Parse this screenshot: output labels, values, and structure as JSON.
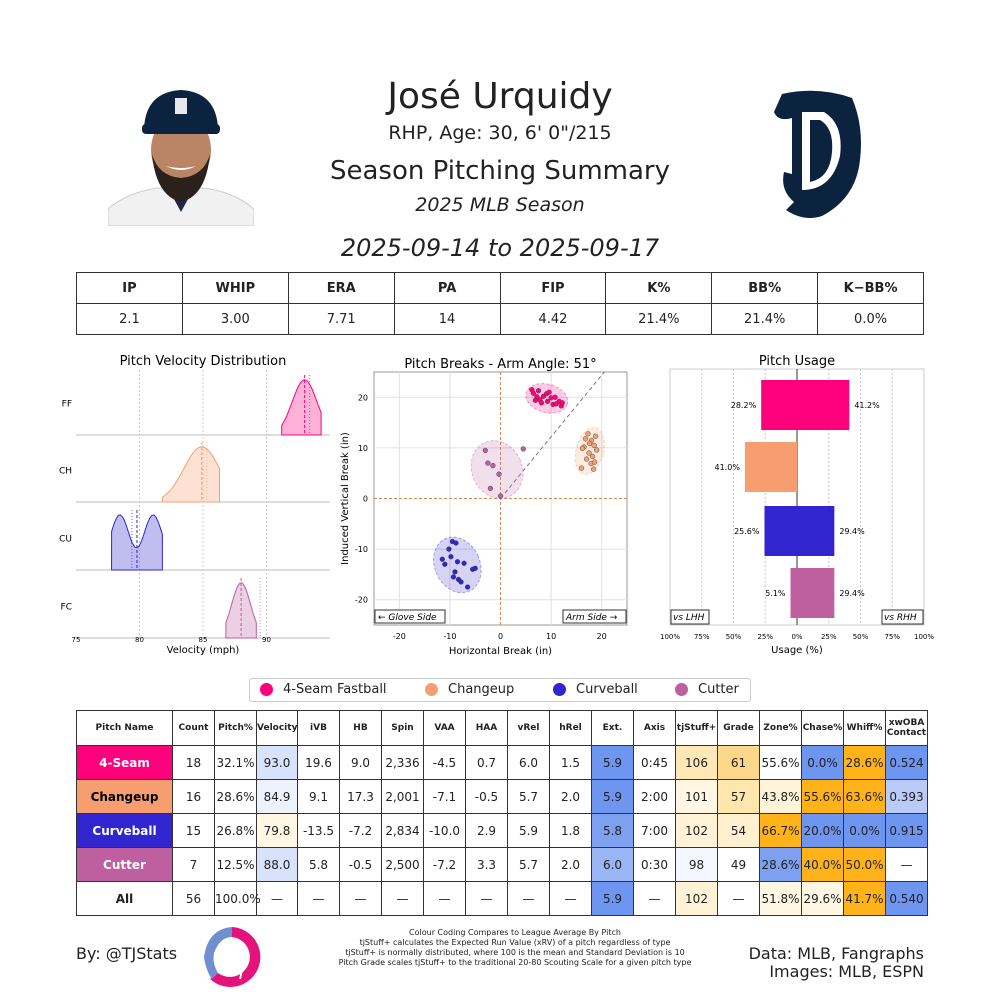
{
  "header": {
    "player_name": "José Urquidy",
    "player_info": "RHP, Age: 30, 6' 0\"/215",
    "summary_title": "Season Pitching Summary",
    "season": "2025 MLB Season",
    "date_range": "2025-09-14 to 2025-09-17"
  },
  "stats": {
    "headers": [
      "IP",
      "WHIP",
      "ERA",
      "PA",
      "FIP",
      "K%",
      "BB%",
      "K−BB%"
    ],
    "values": [
      "2.1",
      "3.00",
      "7.71",
      "14",
      "4.42",
      "21.4%",
      "21.4%",
      "0.0%"
    ]
  },
  "colors": {
    "FF": "#FF007D",
    "CH": "#F79E70",
    "CU": "#3025CE",
    "FC": "#BE5FA0"
  },
  "chart_data": [
    {
      "type": "area",
      "title": "Pitch Velocity Distribution",
      "xlabel": "Velocity (mph)",
      "ylabel": "",
      "xlim": [
        75,
        95
      ],
      "x_ticks": [
        "75",
        "80",
        "85",
        "90"
      ],
      "grid": true,
      "series": [
        {
          "name": "FF",
          "range": [
            91.2,
            94.3
          ],
          "mean": 93.0,
          "league": 93.4
        },
        {
          "name": "CH",
          "range": [
            81.8,
            86.3
          ],
          "mean": 84.9,
          "league": 85.3
        },
        {
          "name": "CU",
          "range": [
            77.8,
            81.8
          ],
          "mean": 79.8,
          "league": 79.4
        },
        {
          "name": "FC",
          "range": [
            86.8,
            89.2
          ],
          "mean": 88.0,
          "league": 89.5
        }
      ]
    },
    {
      "type": "scatter",
      "title": "Pitch Breaks - Arm Angle: 51°",
      "xlabel": "Horizontal Break (in)",
      "ylabel": "Induced Vertical Break (in)",
      "xlim": [
        -25,
        25
      ],
      "ylim": [
        -25,
        25
      ],
      "x_ticks": [
        "-20",
        "-10",
        "0",
        "10",
        "20"
      ],
      "y_ticks": [
        "20",
        "10",
        "0",
        "-10",
        "-20"
      ],
      "glove_label": "← Glove Side",
      "arm_label": "Arm Side →",
      "series": [
        {
          "name": "FF",
          "points": [
            [
              6.2,
              21.5
            ],
            [
              6.5,
              20.8
            ],
            [
              7.2,
              20.1
            ],
            [
              7.8,
              19.5
            ],
            [
              8.5,
              20.2
            ],
            [
              9.1,
              20.7
            ],
            [
              10.0,
              19.9
            ],
            [
              10.4,
              18.6
            ],
            [
              11.6,
              19.2
            ],
            [
              12.0,
              18.3
            ],
            [
              6.9,
              19.4
            ],
            [
              8.1,
              18.9
            ],
            [
              9.6,
              21.0
            ],
            [
              11.0,
              18.7
            ],
            [
              7.5,
              21.3
            ],
            [
              9.3,
              19.2
            ],
            [
              10.8,
              20.0
            ],
            [
              12.2,
              18.9
            ]
          ]
        },
        {
          "name": "CH",
          "points": [
            [
              16.0,
              6.0
            ],
            [
              16.5,
              10.2
            ],
            [
              17.0,
              7.8
            ],
            [
              17.5,
              9.0
            ],
            [
              18.0,
              11.5
            ],
            [
              18.2,
              8.3
            ],
            [
              18.5,
              10.5
            ],
            [
              18.8,
              12.3
            ],
            [
              16.8,
              11.8
            ],
            [
              17.9,
              6.9
            ],
            [
              18.6,
              7.2
            ],
            [
              19.0,
              9.6
            ],
            [
              16.2,
              9.9
            ],
            [
              17.3,
              12.8
            ],
            [
              18.4,
              5.8
            ],
            [
              17.6,
              10.9
            ]
          ]
        },
        {
          "name": "CU",
          "points": [
            [
              -11.5,
              -12.0
            ],
            [
              -11.0,
              -13.0
            ],
            [
              -9.5,
              -8.5
            ],
            [
              -8.8,
              -8.8
            ],
            [
              -9.8,
              -11.5
            ],
            [
              -9.0,
              -14.5
            ],
            [
              -8.3,
              -16.0
            ],
            [
              -7.8,
              -16.5
            ],
            [
              -6.5,
              -17.5
            ],
            [
              -5.5,
              -14.0
            ],
            [
              -5.0,
              -13.8
            ],
            [
              -8.5,
              -12.5
            ],
            [
              -9.3,
              -15.5
            ],
            [
              -10.2,
              -10.0
            ],
            [
              -7.2,
              -12.8
            ]
          ]
        },
        {
          "name": "FC",
          "points": [
            [
              -3.0,
              9.5
            ],
            [
              -2.5,
              7.0
            ],
            [
              -1.5,
              6.5
            ],
            [
              -2.0,
              2.0
            ],
            [
              -0.3,
              4.8
            ],
            [
              0.0,
              0.5
            ],
            [
              4.5,
              9.8
            ]
          ]
        }
      ]
    },
    {
      "type": "bar",
      "title": "Pitch Usage",
      "xlabel": "Usage (%)",
      "xlim": [
        -100,
        100
      ],
      "x_ticks": [
        "100%",
        "75%",
        "50%",
        "25%",
        "0%",
        "25%",
        "50%",
        "75%",
        "100%"
      ],
      "lhh_label": "vs LHH",
      "rhh_label": "vs RHH",
      "categories": [
        "FF",
        "CH",
        "CU",
        "FC"
      ],
      "series": [
        {
          "name": "vs LHH",
          "values": [
            28.2,
            41.0,
            25.6,
            5.1
          ],
          "labels": [
            "28.2%",
            "41.0%",
            "25.6%",
            "5.1%"
          ]
        },
        {
          "name": "vs RHH",
          "values": [
            41.2,
            0,
            29.4,
            29.4
          ],
          "labels": [
            "41.2%",
            "",
            "29.4%",
            "29.4%"
          ]
        }
      ]
    }
  ],
  "legend": [
    "4-Seam Fastball",
    "Changeup",
    "Curveball",
    "Cutter"
  ],
  "pitch_table": {
    "headers": [
      "Pitch Name",
      "Count",
      "Pitch%",
      "Velocity",
      "iVB",
      "HB",
      "Spin",
      "VAA",
      "HAA",
      "vRel",
      "hRel",
      "Ext.",
      "Axis",
      "tjStuff+",
      "Grade",
      "Zone%",
      "Chase%",
      "Whiff%",
      "xwOBA\nContact"
    ],
    "rows": [
      {
        "name": "4-Seam",
        "code": "FF",
        "cells": [
          "18",
          "32.1%",
          "93.0",
          "19.6",
          "9.0",
          "2,336",
          "-4.5",
          "0.7",
          "6.0",
          "1.5",
          "5.9",
          "0:45",
          "106",
          "61",
          "55.6%",
          "0.0%",
          "28.6%",
          "0.524"
        ],
        "bg": [
          "",
          "",
          "#D8E2FA",
          "",
          "",
          "",
          "",
          "",
          "",
          "",
          "#6E95F0",
          "",
          "#FFE8B6",
          "#FDD88A",
          "",
          "#6E95F0",
          "#FFB319",
          "#6E95F0"
        ]
      },
      {
        "name": "Changeup",
        "code": "CH",
        "cells": [
          "16",
          "28.6%",
          "84.9",
          "9.1",
          "17.3",
          "2,001",
          "-7.1",
          "-0.5",
          "5.7",
          "2.0",
          "5.9",
          "2:00",
          "101",
          "57",
          "43.8%",
          "55.6%",
          "63.6%",
          "0.393"
        ],
        "bg": [
          "",
          "",
          "#EEF2FC",
          "",
          "",
          "",
          "",
          "",
          "",
          "",
          "#6E95F0",
          "",
          "#FFF6E3",
          "#FFE6AC",
          "#FFF3D9",
          "#FFB319",
          "#FFB319",
          "#B9CBF6"
        ]
      },
      {
        "name": "Curveball",
        "code": "CU",
        "cells": [
          "15",
          "26.8%",
          "79.8",
          "-13.5",
          "-7.2",
          "2,834",
          "-10.0",
          "2.9",
          "5.9",
          "1.8",
          "5.8",
          "7:00",
          "102",
          "54",
          "66.7%",
          "20.0%",
          "0.0%",
          "0.915"
        ],
        "bg": [
          "",
          "",
          "#FFF6E3",
          "",
          "",
          "",
          "",
          "",
          "",
          "",
          "#7DA0F1",
          "",
          "#FFF2D6",
          "#FFF0D0",
          "#FFB319",
          "#6E95F0",
          "#6E95F0",
          "#6E95F0"
        ]
      },
      {
        "name": "Cutter",
        "code": "FC",
        "cells": [
          "7",
          "12.5%",
          "88.0",
          "5.8",
          "-0.5",
          "2,500",
          "-7.2",
          "3.3",
          "5.7",
          "2.0",
          "6.0",
          "0:30",
          "98",
          "49",
          "28.6%",
          "40.0%",
          "50.0%",
          "—"
        ],
        "bg": [
          "",
          "",
          "#D8E2FA",
          "",
          "",
          "",
          "",
          "",
          "",
          "",
          "#9AB5F4",
          "",
          "#F3F6FD",
          "",
          "#7DA0F1",
          "#FFB319",
          "#FFB319",
          ""
        ]
      },
      {
        "name": "All",
        "code": "ALL",
        "cells": [
          "56",
          "100.0%",
          "—",
          "—",
          "—",
          "—",
          "—",
          "—",
          "—",
          "—",
          "5.9",
          "—",
          "102",
          "—",
          "51.8%",
          "29.6%",
          "41.7%",
          "0.540"
        ],
        "bg": [
          "",
          "",
          "",
          "",
          "",
          "",
          "",
          "",
          "",
          "",
          "#6E95F0",
          "",
          "#FFF2D6",
          "",
          "#FFF6E3",
          "#FFF6E3",
          "#FFB319",
          "#6E95F0"
        ]
      }
    ]
  },
  "footer": {
    "by": "By: @TJStats",
    "note_lines": [
      "Colour Coding Compares to League Average By Pitch",
      "tjStuff+ calculates the Expected Run Value (xRV) of a pitch regardless of type",
      "tjStuff+ is normally distributed, where 100 is the mean and Standard Deviation is 10",
      "Pitch Grade scales tjStuff+ to the traditional 20-80 Scouting Scale for a given pitch type"
    ],
    "data_source": "Data: MLB, Fangraphs",
    "images_source": "Images: MLB, ESPN"
  }
}
